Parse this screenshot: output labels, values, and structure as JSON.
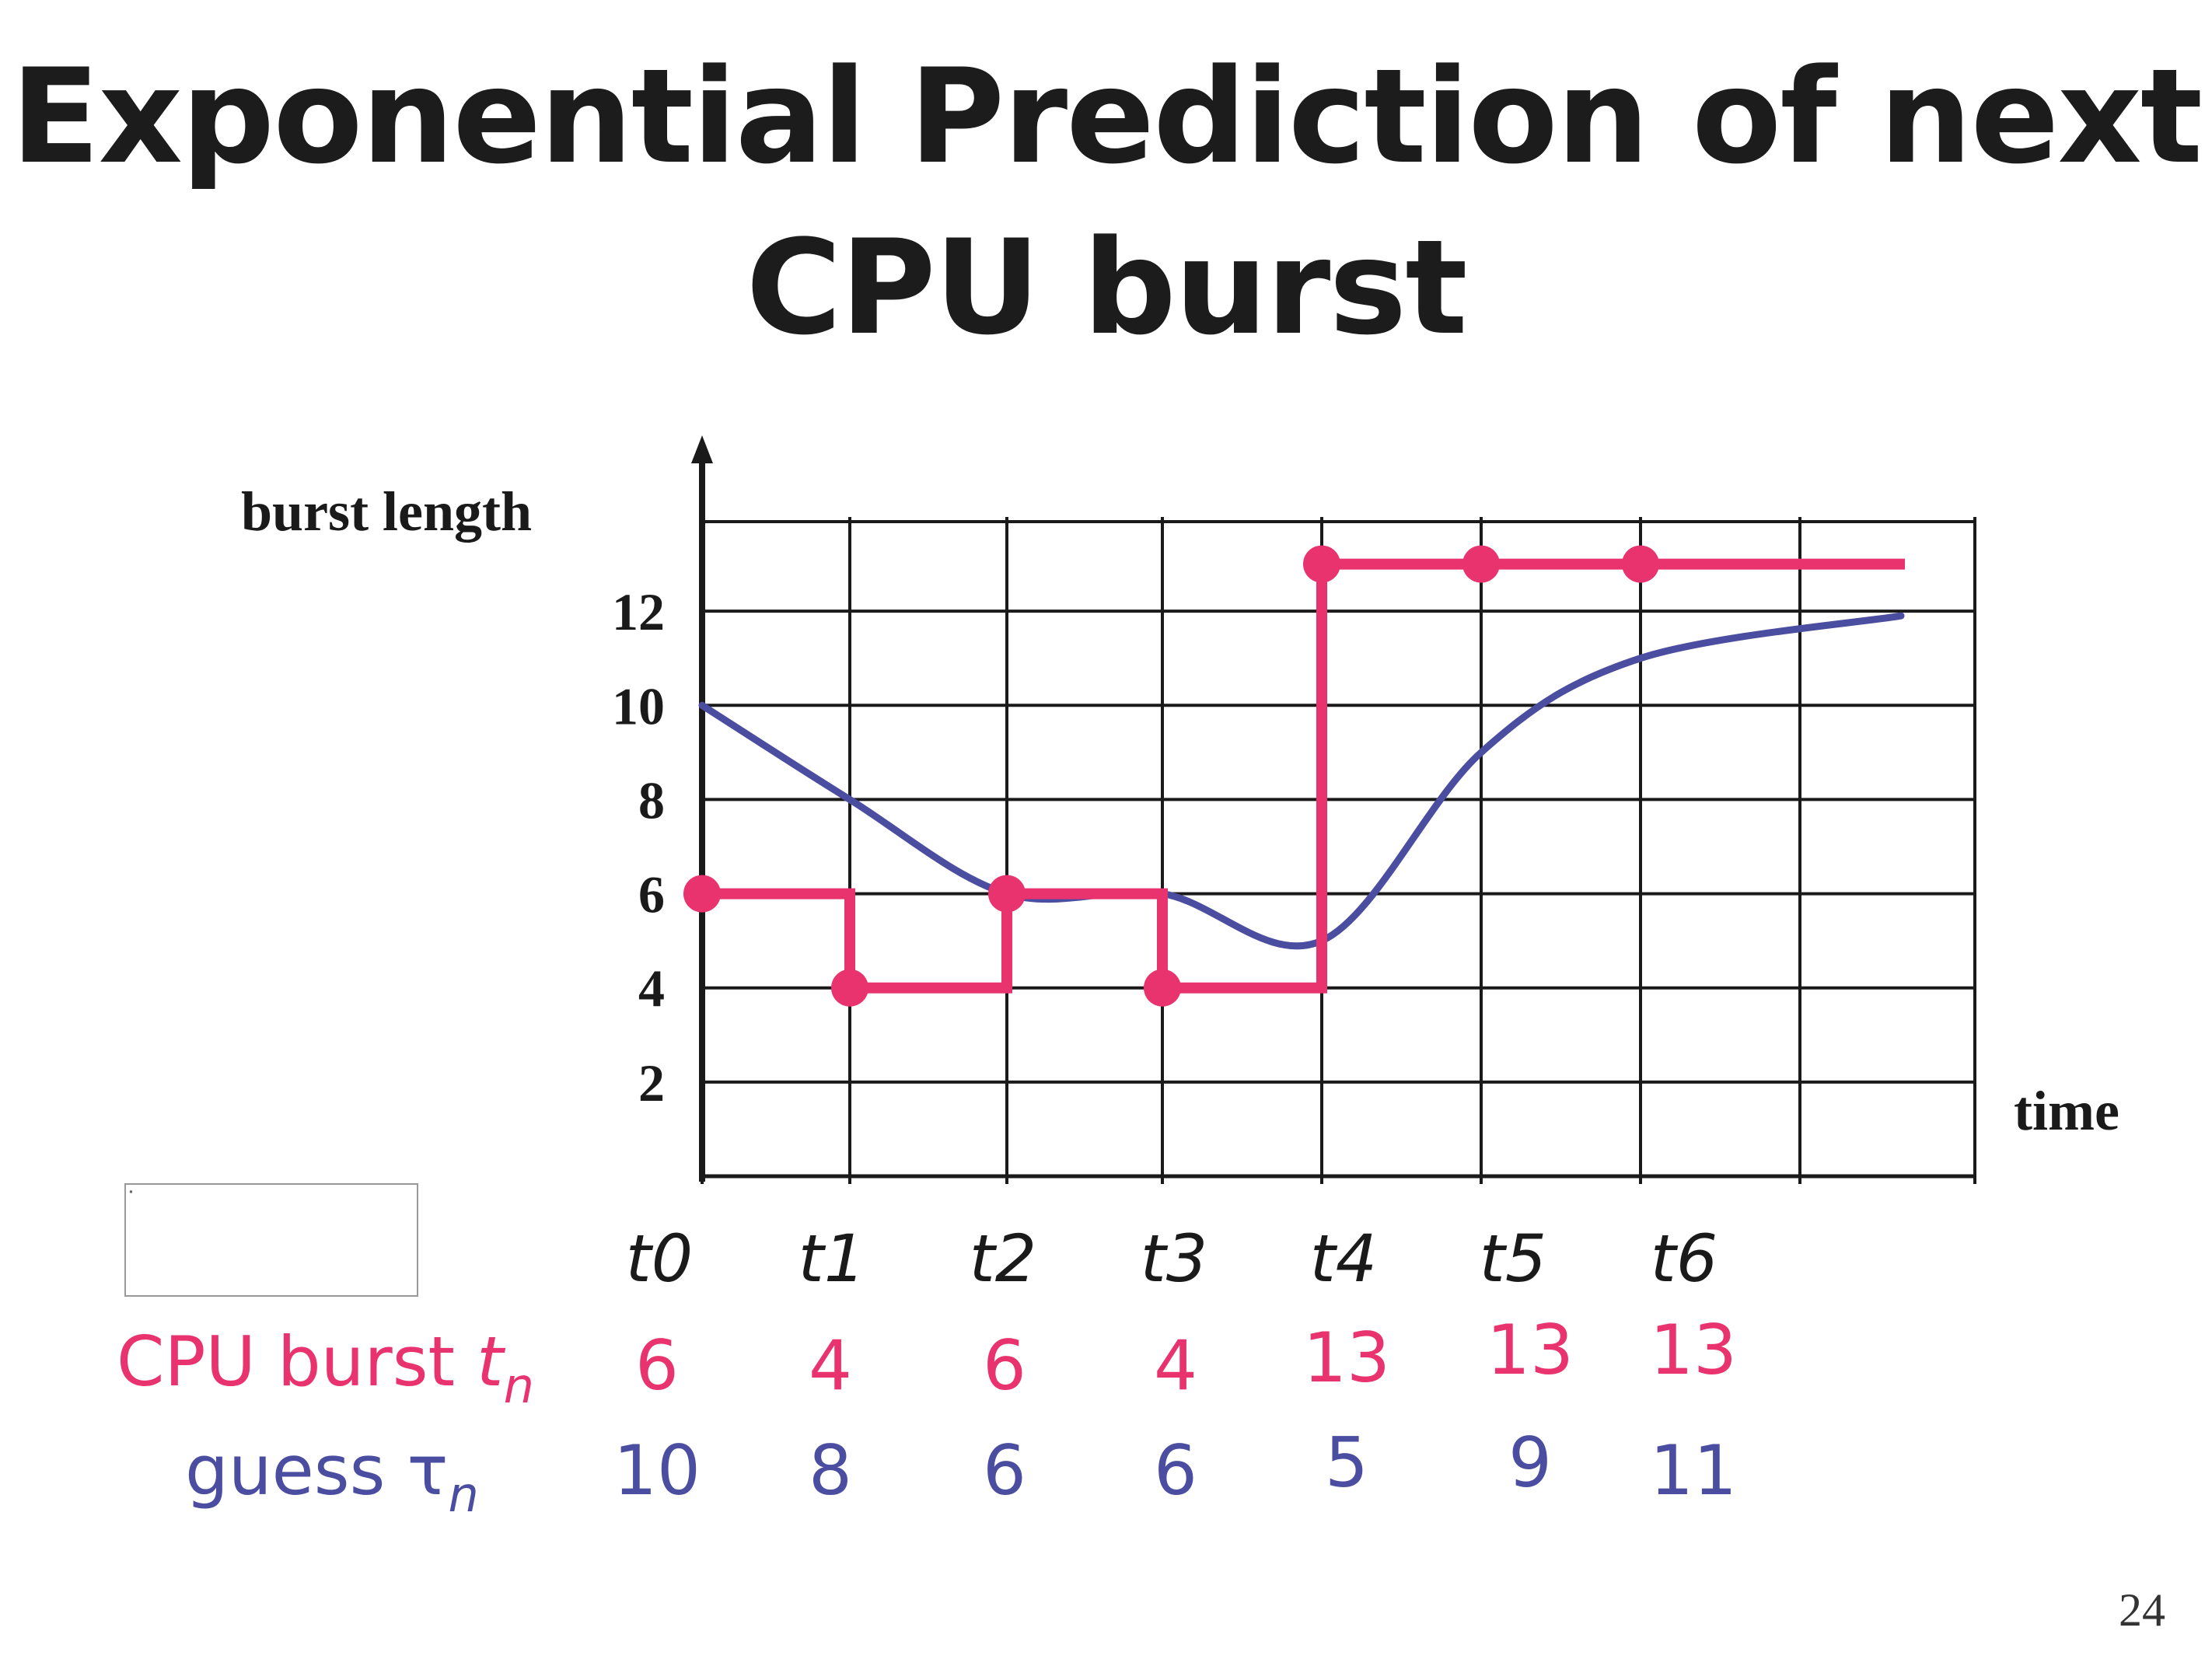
{
  "slide": {
    "title_line1": "Exponential Prediction of next",
    "title_line2": "CPU burst",
    "page_number": "24"
  },
  "rows": {
    "burst_label": "CPU burst",
    "burst_subscript": "n",
    "burst_symbol": "t",
    "guess_label": "guess",
    "guess_symbol": "τ",
    "guess_subscript": "n"
  },
  "chart_data": {
    "type": "line",
    "ylabel": "burst length",
    "xlabel": "time",
    "categories": [
      "t0",
      "t1",
      "t2",
      "t3",
      "t4",
      "t5",
      "t6"
    ],
    "yticks": [
      "2",
      "4",
      "6",
      "8",
      "10",
      "12"
    ],
    "ylim": [
      0,
      14
    ],
    "grid": true,
    "series": [
      {
        "name": "CPU burst",
        "color": "#e8336f",
        "style": "step-with-markers",
        "values": [
          6,
          4,
          6,
          4,
          13,
          13,
          13
        ]
      },
      {
        "name": "guess",
        "color": "#4b4ea0",
        "style": "smooth",
        "values": [
          10,
          8,
          6,
          6,
          5,
          9,
          11
        ]
      }
    ],
    "table": {
      "burst_values": [
        "6",
        "4",
        "6",
        "4",
        "13",
        "13",
        "13"
      ],
      "guess_values": [
        "10",
        "8",
        "6",
        "6",
        "5",
        "9",
        "11"
      ]
    }
  }
}
